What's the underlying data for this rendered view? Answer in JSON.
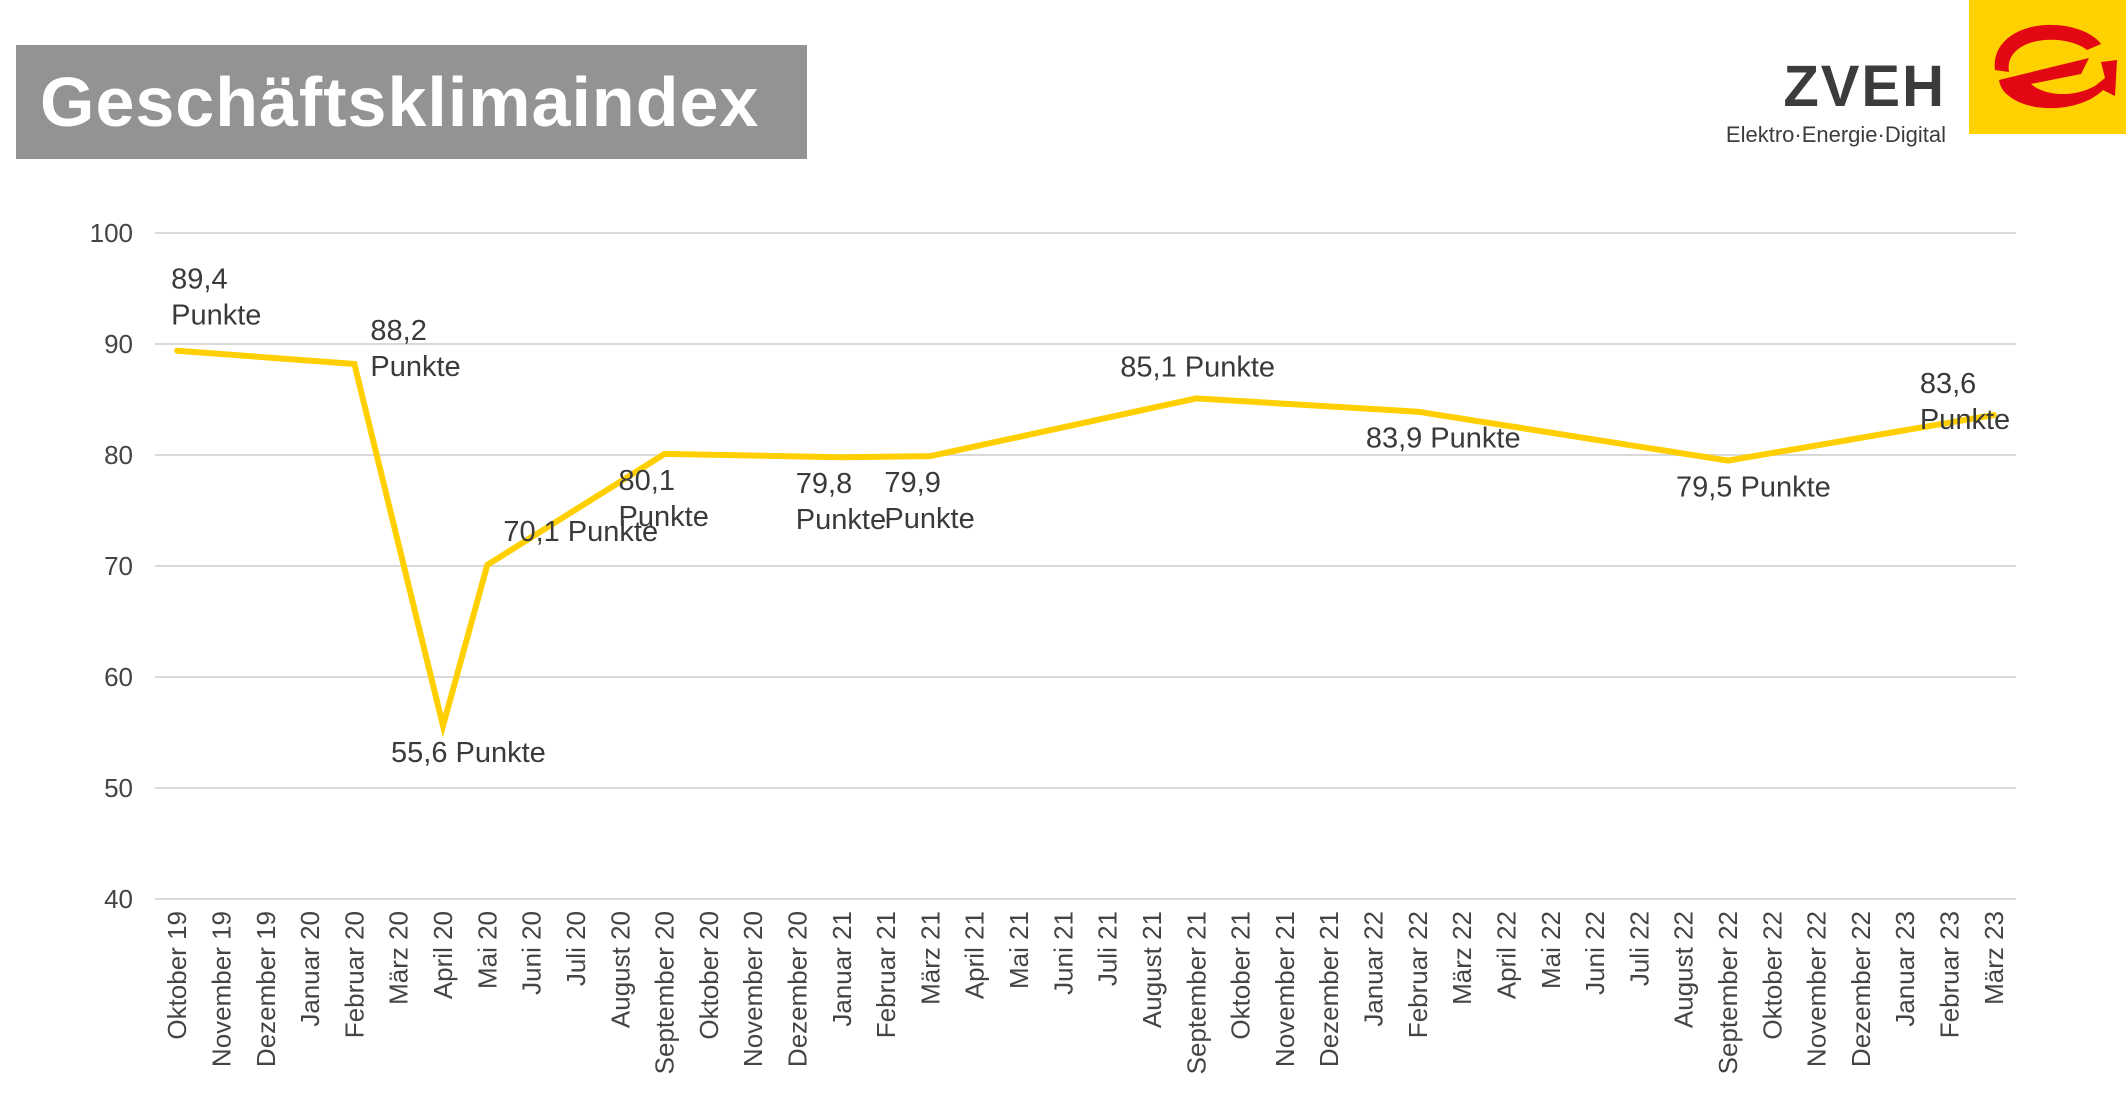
{
  "header": {
    "title": "Geschäftsklimaindex",
    "logo_name": "ZVEH",
    "logo_tagline": "Elektro·Energie·Digital"
  },
  "colors": {
    "line": "#ffcf00",
    "grid": "#d9d9d9",
    "title_bg": "#939393",
    "logo_yellow": "#ffd100",
    "logo_red": "#e30613"
  },
  "chart_data": {
    "type": "line",
    "title": "",
    "xlabel": "",
    "ylabel": "",
    "ylim": [
      40,
      100
    ],
    "yticks": [
      "100",
      "90",
      "80",
      "70",
      "60",
      "50",
      "40"
    ],
    "grid": true,
    "categories": [
      "Oktober 19",
      "November 19",
      "Dezember 19",
      "Januar 20",
      "Februar 20",
      "März 20",
      "April 20",
      "Mai 20",
      "Juni 20",
      "Juli 20",
      "August 20",
      "September 20",
      "Oktober 20",
      "November 20",
      "Dezember 20",
      "Januar 21",
      "Februar 21",
      "März 21",
      "April 21",
      "Mai 21",
      "Juni 21",
      "Juli 21",
      "August 21",
      "September 21",
      "Oktober 21",
      "November 21",
      "Dezember 21",
      "Januar 22",
      "Februar 22",
      "März 22",
      "April 22",
      "Mai 22",
      "Juni 22",
      "Juli 22",
      "August 22",
      "September 22",
      "Oktober 22",
      "November 22",
      "Dezember 22",
      "Januar 23",
      "Februar 23",
      "März 23"
    ],
    "series": [
      {
        "points": [
          {
            "category": "Oktober 19",
            "value": 89.4
          },
          {
            "category": "Februar 20",
            "value": 88.2
          },
          {
            "category": "April 20",
            "value": 55.6
          },
          {
            "category": "Mai 20",
            "value": 70.1
          },
          {
            "category": "September 20",
            "value": 80.1
          },
          {
            "category": "Januar 21",
            "value": 79.8
          },
          {
            "category": "März 21",
            "value": 79.9
          },
          {
            "category": "September 21",
            "value": 85.1
          },
          {
            "category": "Februar 22",
            "value": 83.9
          },
          {
            "category": "September 22",
            "value": 79.5
          },
          {
            "category": "März 23",
            "value": 83.6
          }
        ]
      }
    ],
    "annotations": [
      {
        "category": "Oktober 19",
        "lines": [
          "89,4",
          "Punkte"
        ],
        "placement": "above-right"
      },
      {
        "category": "Februar 20",
        "lines": [
          "88,2",
          "Punkte"
        ],
        "placement": "right"
      },
      {
        "category": "April 20",
        "lines": [
          "55,6 Punkte"
        ],
        "placement": "below"
      },
      {
        "category": "Mai 20",
        "lines": [
          "70,1 Punkte"
        ],
        "placement": "right"
      },
      {
        "category": "September 20",
        "lines": [
          "80,1",
          "Punkte"
        ],
        "placement": "below"
      },
      {
        "category": "Januar 21",
        "lines": [
          "79,8",
          "Punkte"
        ],
        "placement": "below"
      },
      {
        "category": "März 21",
        "lines": [
          "79,9",
          "Punkte"
        ],
        "placement": "below"
      },
      {
        "category": "September 21",
        "lines": [
          "85,1 Punkte"
        ],
        "placement": "above"
      },
      {
        "category": "Februar 22",
        "lines": [
          "83,9 Punkte"
        ],
        "placement": "below"
      },
      {
        "category": "September 22",
        "lines": [
          "79,5 Punkte"
        ],
        "placement": "below"
      },
      {
        "category": "März 23",
        "lines": [
          "83,6",
          "Punkte"
        ],
        "placement": "above"
      }
    ]
  }
}
